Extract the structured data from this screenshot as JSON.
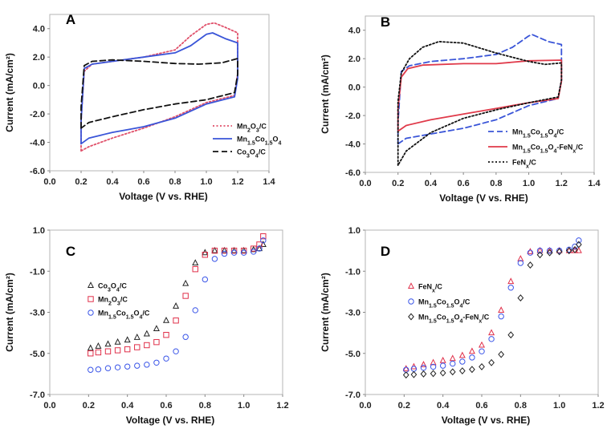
{
  "chart_data": [
    {
      "panel": "A",
      "type": "line",
      "xlabel": "Voltage (V vs. RHE)",
      "ylabel": "Current (mA/cm²)",
      "xlim": [
        0.0,
        1.4
      ],
      "ylim": [
        -6.0,
        5.0
      ],
      "xticks": [
        "0.0",
        "0.2",
        "0.4",
        "0.6",
        "0.8",
        "1.0",
        "1.2",
        "1.4"
      ],
      "yticks": [
        "4.0",
        "2.0",
        "0.0",
        "-2.0",
        "-4.0",
        "-6.0"
      ],
      "grid": false,
      "legend": "lower-right",
      "series": [
        {
          "name": "Mn2O3/C",
          "color": "#e0506a",
          "style": "dotted",
          "points": [
            [
              0.2,
              -4.6
            ],
            [
              0.2,
              -2.5
            ],
            [
              0.22,
              1.0
            ],
            [
              0.27,
              1.5
            ],
            [
              0.4,
              1.7
            ],
            [
              0.6,
              2.0
            ],
            [
              0.8,
              2.5
            ],
            [
              0.9,
              3.5
            ],
            [
              1.0,
              4.3
            ],
            [
              1.05,
              4.4
            ],
            [
              1.12,
              4.1
            ],
            [
              1.2,
              3.7
            ],
            [
              1.2,
              0.8
            ],
            [
              1.18,
              -0.7
            ],
            [
              1.0,
              -1.2
            ],
            [
              0.8,
              -2.2
            ],
            [
              0.6,
              -3.0
            ],
            [
              0.4,
              -3.7
            ],
            [
              0.25,
              -4.3
            ],
            [
              0.2,
              -4.6
            ]
          ]
        },
        {
          "name": "Mn1.5Co1.5O4",
          "color": "#3a55d8",
          "style": "solid",
          "points": [
            [
              0.2,
              -4.1
            ],
            [
              0.2,
              -2.5
            ],
            [
              0.22,
              1.2
            ],
            [
              0.27,
              1.5
            ],
            [
              0.4,
              1.7
            ],
            [
              0.6,
              2.0
            ],
            [
              0.8,
              2.3
            ],
            [
              0.9,
              2.8
            ],
            [
              1.0,
              3.6
            ],
            [
              1.04,
              3.7
            ],
            [
              1.12,
              3.3
            ],
            [
              1.2,
              3.0
            ],
            [
              1.2,
              0.5
            ],
            [
              1.18,
              -0.8
            ],
            [
              1.0,
              -1.3
            ],
            [
              0.8,
              -2.3
            ],
            [
              0.6,
              -2.9
            ],
            [
              0.5,
              -3.1
            ],
            [
              0.4,
              -3.3
            ],
            [
              0.25,
              -3.7
            ],
            [
              0.2,
              -4.1
            ]
          ]
        },
        {
          "name": "Co3O4/C",
          "color": "#111111",
          "style": "dashed",
          "points": [
            [
              0.2,
              -3.0
            ],
            [
              0.2,
              -1.5
            ],
            [
              0.22,
              1.4
            ],
            [
              0.27,
              1.7
            ],
            [
              0.4,
              1.8
            ],
            [
              0.6,
              1.7
            ],
            [
              0.8,
              1.55
            ],
            [
              0.95,
              1.5
            ],
            [
              1.1,
              1.6
            ],
            [
              1.2,
              1.9
            ],
            [
              1.2,
              0.8
            ],
            [
              1.18,
              -0.5
            ],
            [
              1.0,
              -1.0
            ],
            [
              0.8,
              -1.3
            ],
            [
              0.6,
              -1.7
            ],
            [
              0.4,
              -2.2
            ],
            [
              0.25,
              -2.6
            ],
            [
              0.2,
              -3.0
            ]
          ]
        }
      ]
    },
    {
      "panel": "B",
      "type": "line",
      "xlabel": "Voltage (V  vs. RHE)",
      "ylabel": "Current (mA/cm²)",
      "xlim": [
        0.0,
        1.4
      ],
      "ylim": [
        -6.0,
        5.0
      ],
      "xticks": [
        "0.0",
        "0.2",
        "0.4",
        "0.6",
        "0.8",
        "1.0",
        "1.2",
        "1.4"
      ],
      "yticks": [
        "4.0",
        "2.0",
        "0.0",
        "-2.0",
        "-4.0",
        "-6.0"
      ],
      "grid": false,
      "legend": "lower-right",
      "series": [
        {
          "name": "Mn1.5Co1.5O4/C",
          "color": "#3a55d8",
          "style": "dashed",
          "points": [
            [
              0.2,
              -4.0
            ],
            [
              0.2,
              -2.5
            ],
            [
              0.22,
              1.1
            ],
            [
              0.27,
              1.5
            ],
            [
              0.4,
              1.8
            ],
            [
              0.6,
              2.0
            ],
            [
              0.8,
              2.3
            ],
            [
              0.9,
              2.8
            ],
            [
              1.0,
              3.6
            ],
            [
              1.02,
              3.7
            ],
            [
              1.12,
              3.2
            ],
            [
              1.2,
              3.0
            ],
            [
              1.2,
              0.5
            ],
            [
              1.18,
              -0.8
            ],
            [
              1.0,
              -1.3
            ],
            [
              0.8,
              -2.3
            ],
            [
              0.6,
              -2.9
            ],
            [
              0.4,
              -3.3
            ],
            [
              0.25,
              -3.6
            ],
            [
              0.2,
              -4.0
            ]
          ]
        },
        {
          "name": "Mn1.5Co1.5O4-FeNx/C",
          "color": "#e03a4a",
          "style": "solid",
          "points": [
            [
              0.2,
              -3.1
            ],
            [
              0.2,
              -1.5
            ],
            [
              0.22,
              0.7
            ],
            [
              0.26,
              1.3
            ],
            [
              0.35,
              1.55
            ],
            [
              0.6,
              1.65
            ],
            [
              0.8,
              1.65
            ],
            [
              1.0,
              1.85
            ],
            [
              1.2,
              1.9
            ],
            [
              1.2,
              0.4
            ],
            [
              1.18,
              -0.8
            ],
            [
              1.0,
              -1.1
            ],
            [
              0.8,
              -1.5
            ],
            [
              0.6,
              -1.9
            ],
            [
              0.4,
              -2.3
            ],
            [
              0.25,
              -2.7
            ],
            [
              0.2,
              -3.1
            ]
          ]
        },
        {
          "name": "FeNx/C",
          "color": "#111111",
          "style": "dotted",
          "points": [
            [
              0.2,
              -5.5
            ],
            [
              0.2,
              -1.0
            ],
            [
              0.22,
              1.0
            ],
            [
              0.27,
              2.0
            ],
            [
              0.35,
              2.8
            ],
            [
              0.45,
              3.2
            ],
            [
              0.6,
              3.1
            ],
            [
              0.8,
              2.4
            ],
            [
              1.0,
              1.8
            ],
            [
              1.1,
              1.6
            ],
            [
              1.2,
              1.7
            ],
            [
              1.2,
              0.5
            ],
            [
              1.18,
              -0.7
            ],
            [
              1.0,
              -1.1
            ],
            [
              0.8,
              -1.6
            ],
            [
              0.6,
              -2.2
            ],
            [
              0.4,
              -3.2
            ],
            [
              0.25,
              -4.5
            ],
            [
              0.2,
              -5.5
            ]
          ]
        }
      ]
    },
    {
      "panel": "C",
      "type": "scatter",
      "xlabel": "Voltage (V vs. RHE)",
      "ylabel": "Current (mA/cm²)",
      "xlim": [
        0.0,
        1.2
      ],
      "ylim": [
        -7.0,
        1.0
      ],
      "xticks": [
        "0.0",
        "0.2",
        "0.4",
        "0.6",
        "0.8",
        "1.0",
        "1.2"
      ],
      "yticks": [
        "1.0",
        "-1.0",
        "-3.0",
        "-5.0",
        "-7.0"
      ],
      "grid": false,
      "legend": "center-left",
      "series": [
        {
          "name": "Co3O4/C",
          "color": "#222222",
          "marker": "triangle",
          "x": [
            0.21,
            0.25,
            0.3,
            0.35,
            0.4,
            0.45,
            0.5,
            0.55,
            0.6,
            0.65,
            0.7,
            0.75,
            0.8,
            0.85,
            0.9,
            0.95,
            1.0,
            1.05,
            1.08,
            1.1
          ],
          "y": [
            -4.75,
            -4.65,
            -4.55,
            -4.45,
            -4.35,
            -4.22,
            -4.05,
            -3.8,
            -3.4,
            -2.7,
            -1.6,
            -0.6,
            -0.1,
            0.0,
            0.0,
            0.0,
            0.0,
            0.05,
            0.1,
            0.3
          ]
        },
        {
          "name": "Mn2O3/C",
          "color": "#e0304a",
          "marker": "square",
          "x": [
            0.21,
            0.25,
            0.3,
            0.35,
            0.4,
            0.45,
            0.5,
            0.55,
            0.6,
            0.65,
            0.7,
            0.75,
            0.8,
            0.85,
            0.9,
            0.95,
            1.0,
            1.05,
            1.08,
            1.1
          ],
          "y": [
            -5.0,
            -4.95,
            -4.9,
            -4.85,
            -4.8,
            -4.7,
            -4.6,
            -4.45,
            -4.1,
            -3.4,
            -2.2,
            -0.9,
            -0.2,
            0.0,
            0.0,
            0.0,
            0.0,
            0.1,
            0.3,
            0.7
          ]
        },
        {
          "name": "Mn1.5Co1.5O4/C",
          "color": "#3a55e8",
          "marker": "circle",
          "x": [
            0.21,
            0.25,
            0.3,
            0.35,
            0.4,
            0.45,
            0.5,
            0.55,
            0.6,
            0.65,
            0.7,
            0.75,
            0.8,
            0.85,
            0.9,
            0.95,
            1.0,
            1.05,
            1.08,
            1.1
          ],
          "y": [
            -5.8,
            -5.78,
            -5.72,
            -5.68,
            -5.64,
            -5.6,
            -5.55,
            -5.45,
            -5.25,
            -4.9,
            -4.2,
            -2.9,
            -1.4,
            -0.4,
            -0.15,
            -0.1,
            -0.1,
            -0.05,
            0.1,
            0.5
          ]
        }
      ]
    },
    {
      "panel": "D",
      "type": "scatter",
      "xlabel": "Voltage (V vs. RHE)",
      "ylabel": "Current (mA/cm²)",
      "xlim": [
        0.0,
        1.2
      ],
      "ylim": [
        -7.0,
        1.0
      ],
      "xticks": [
        "0.0",
        "0.2",
        "0.4",
        "0.6",
        "0.8",
        "1.0",
        "1.2"
      ],
      "yticks": [
        "1.0",
        "-1.0",
        "-3.0",
        "-5.0",
        "-7.0"
      ],
      "grid": false,
      "legend": "center-left",
      "series": [
        {
          "name": "FeNx/C",
          "color": "#e0304a",
          "marker": "triangle",
          "x": [
            0.21,
            0.25,
            0.3,
            0.35,
            0.4,
            0.45,
            0.5,
            0.55,
            0.6,
            0.65,
            0.7,
            0.75,
            0.8,
            0.85,
            0.9,
            0.95,
            1.0,
            1.05,
            1.08,
            1.1
          ],
          "y": [
            -5.75,
            -5.65,
            -5.55,
            -5.45,
            -5.35,
            -5.25,
            -5.1,
            -4.9,
            -4.6,
            -4.0,
            -2.9,
            -1.5,
            -0.4,
            -0.05,
            0.0,
            0.0,
            0.0,
            0.0,
            0.0,
            0.0
          ]
        },
        {
          "name": "Mn1.5Co1.5O4/C",
          "color": "#3a55e8",
          "marker": "circle",
          "x": [
            0.21,
            0.25,
            0.3,
            0.35,
            0.4,
            0.45,
            0.5,
            0.55,
            0.6,
            0.65,
            0.7,
            0.75,
            0.8,
            0.85,
            0.9,
            0.95,
            1.0,
            1.05,
            1.08,
            1.1
          ],
          "y": [
            -5.8,
            -5.75,
            -5.7,
            -5.65,
            -5.6,
            -5.5,
            -5.4,
            -5.2,
            -4.9,
            -4.3,
            -3.2,
            -1.8,
            -0.6,
            -0.1,
            0.0,
            0.0,
            0.0,
            0.05,
            0.2,
            0.5
          ]
        },
        {
          "name": "Mn1.5Co1.5O4-FeNx/C",
          "color": "#222222",
          "marker": "diamond",
          "x": [
            0.21,
            0.25,
            0.3,
            0.35,
            0.4,
            0.45,
            0.5,
            0.55,
            0.6,
            0.65,
            0.7,
            0.75,
            0.8,
            0.85,
            0.9,
            0.95,
            1.0,
            1.05,
            1.08,
            1.1
          ],
          "y": [
            -6.05,
            -6.03,
            -6.0,
            -5.98,
            -5.95,
            -5.9,
            -5.85,
            -5.78,
            -5.65,
            -5.45,
            -5.05,
            -4.1,
            -2.3,
            -0.7,
            -0.2,
            -0.1,
            -0.05,
            0.0,
            0.05,
            0.3
          ]
        }
      ]
    }
  ]
}
